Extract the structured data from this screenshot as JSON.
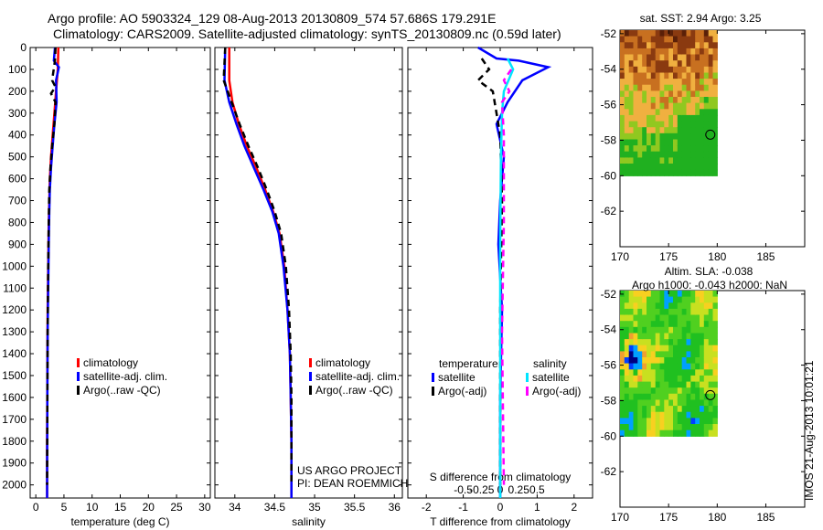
{
  "header": {
    "title_line1": "Argo profile: AO 5903324_129 08-Aug-2013 20130809_574 57.686S 179.291E",
    "title_line2": "Climatology: CARS2009. Satellite-adjusted climatology: synTS_20130809.nc (0.59d later)"
  },
  "stamp": "IMOS 21-Aug-2013 10:01:21",
  "credits": {
    "line1": "US ARGO PROJECT",
    "line2": "PI: DEAN ROEMMICH"
  },
  "colors": {
    "climatology": "#ff0000",
    "satellite": "#0000ff",
    "argo": "#000000",
    "sal_satellite": "#00e5ff",
    "sal_argo": "#ff00ff"
  },
  "chart_data": [
    {
      "type": "line",
      "panel": "temperature",
      "xlabel": "temperature (deg C)",
      "ylabel": "",
      "xlim": [
        -1,
        31
      ],
      "ylim": [
        2060,
        0
      ],
      "xticks": [
        0,
        5,
        10,
        15,
        20,
        25,
        30
      ],
      "xtick_labels": [
        "0",
        "5",
        "10",
        "15",
        "20",
        "25",
        "30"
      ],
      "yticks": [
        0,
        100,
        200,
        300,
        400,
        500,
        600,
        700,
        800,
        900,
        1000,
        1100,
        1200,
        1300,
        1400,
        1500,
        1600,
        1700,
        1800,
        1900,
        2000
      ],
      "ytick_labels": [
        "0",
        "100",
        "200",
        "300",
        "400",
        "500",
        "600",
        "700",
        "800",
        "900",
        "1000",
        "1100",
        "1200",
        "1300",
        "1400",
        "1500",
        "1600",
        "1700",
        "1800",
        "1900",
        "2000"
      ],
      "legend": [
        "climatology",
        "satellite-adj. clim.",
        "Argo(..raw -QC)"
      ],
      "series": [
        {
          "name": "climatology",
          "style": "solid",
          "x": [
            4.0,
            3.9,
            3.6,
            3.3,
            3.0,
            2.7,
            2.5,
            2.4,
            2.3,
            2.2,
            2.1,
            2.05,
            2.0,
            2.0
          ],
          "y": [
            0,
            100,
            200,
            300,
            400,
            500,
            600,
            700,
            800,
            1000,
            1200,
            1500,
            1800,
            2060
          ]
        },
        {
          "name": "satellite-adj. clim.",
          "style": "solid",
          "x": [
            3.4,
            3.2,
            4.1,
            3.6,
            3.7,
            3.3,
            3.0,
            2.7,
            2.5,
            2.4,
            2.3,
            2.2,
            2.1,
            2.05,
            2.0,
            2.0
          ],
          "y": [
            0,
            60,
            90,
            150,
            250,
            350,
            450,
            550,
            650,
            750,
            900,
            1100,
            1300,
            1600,
            1900,
            2060
          ]
        },
        {
          "name": "Argo(..raw -QC)",
          "style": "dashed",
          "x": [
            3.5,
            3.4,
            2.9,
            3.5,
            2.7,
            3.5,
            3.3,
            2.9,
            2.6,
            2.4,
            2.3,
            2.2,
            2.1,
            2.05,
            2.0
          ],
          "y": [
            0,
            60,
            150,
            180,
            210,
            250,
            350,
            450,
            550,
            650,
            800,
            1000,
            1300,
            1600,
            2000
          ]
        }
      ]
    },
    {
      "type": "line",
      "panel": "salinity",
      "xlabel": "salinity",
      "ylabel": "",
      "xlim": [
        33.75,
        36.1
      ],
      "ylim": [
        2060,
        0
      ],
      "xticks": [
        34,
        34.5,
        35,
        35.5,
        36
      ],
      "xtick_labels": [
        "34",
        "34.5",
        "35",
        "35.5",
        "36"
      ],
      "legend": [
        "climatology",
        "satellite-adj. clim.",
        "Argo(..raw -QC)"
      ],
      "series": [
        {
          "name": "climatology",
          "style": "solid",
          "x": [
            33.93,
            33.93,
            33.97,
            34.05,
            34.15,
            34.27,
            34.38,
            34.48,
            34.56,
            34.62,
            34.66,
            34.69,
            34.7,
            34.71,
            34.71
          ],
          "y": [
            0,
            150,
            250,
            350,
            450,
            550,
            650,
            750,
            850,
            1000,
            1200,
            1400,
            1600,
            1800,
            2060
          ]
        },
        {
          "name": "satellite-adj. clim.",
          "style": "solid",
          "x": [
            33.88,
            33.87,
            33.93,
            34.02,
            34.12,
            34.24,
            34.36,
            34.47,
            34.55,
            34.61,
            34.66,
            34.69,
            34.7,
            34.71,
            34.71
          ],
          "y": [
            0,
            150,
            250,
            350,
            450,
            550,
            650,
            750,
            850,
            1000,
            1200,
            1400,
            1600,
            1800,
            2060
          ]
        },
        {
          "name": "Argo(..raw -QC)",
          "style": "dashed",
          "x": [
            33.88,
            33.86,
            33.96,
            34.06,
            34.17,
            34.29,
            34.4,
            34.5,
            34.58,
            34.64,
            34.68,
            34.7,
            34.71,
            34.71
          ],
          "y": [
            0,
            150,
            250,
            350,
            450,
            550,
            650,
            750,
            850,
            1000,
            1200,
            1400,
            1600,
            2000
          ]
        }
      ]
    },
    {
      "type": "line",
      "panel": "difference",
      "xlabel": "T difference from climatology",
      "title": "S difference from climatology",
      "xlim": [
        -2.5,
        2.5
      ],
      "ylim": [
        2060,
        0
      ],
      "xticks": [
        -2,
        -1,
        0,
        1,
        2
      ],
      "xtick_labels": [
        "-2",
        "-1",
        "0",
        "1",
        "2"
      ],
      "top_ticks": [
        -1,
        -0.5,
        0,
        0.5,
        1
      ],
      "top_tick_labels": [
        "-0.5",
        "-0.25",
        "0",
        "0.25",
        "0.5"
      ],
      "legend_headers": [
        "temperature",
        "salinity"
      ],
      "legend": [
        "satellite",
        "Argo(-adj)",
        "satellite",
        "Argo(-adj)"
      ],
      "series": [
        {
          "name": "temperature satellite",
          "style": "solid",
          "x": [
            -0.6,
            -0.1,
            0.5,
            1.3,
            0.6,
            0.2,
            -0.1,
            0.1,
            0.0,
            -0.05,
            0.05,
            0.0,
            0.0
          ],
          "y": [
            0,
            50,
            60,
            90,
            150,
            250,
            350,
            500,
            700,
            900,
            1200,
            1600,
            2060
          ]
        },
        {
          "name": "temperature Argo(-adj)",
          "style": "dashed",
          "x": [
            -0.5,
            -0.3,
            -0.6,
            -0.2,
            0.0,
            0.05,
            0.0,
            0.0
          ],
          "y": [
            50,
            100,
            150,
            200,
            400,
            700,
            1200,
            2000
          ]
        },
        {
          "name": "salinity satellite",
          "style": "solid",
          "x": [
            0.2,
            0.35,
            0.1,
            0.05,
            0.02,
            0.0,
            0.0
          ],
          "y": [
            50,
            100,
            200,
            300,
            500,
            900,
            2060
          ]
        },
        {
          "name": "salinity Argo(-adj)",
          "style": "dashed",
          "x": [
            0.3,
            0.1,
            0.25,
            0.05,
            0.1,
            0.1,
            0.05,
            0.1
          ],
          "y": [
            100,
            150,
            200,
            250,
            400,
            800,
            1300,
            2000
          ]
        }
      ]
    },
    {
      "type": "heatmap",
      "panel": "sst",
      "title": "sat. SST: 2.94 Argo: 3.25",
      "xlim": [
        170,
        189
      ],
      "ylim": [
        -64,
        -51.8
      ],
      "xticks": [
        170,
        175,
        180,
        185
      ],
      "yticks": [
        -52,
        -54,
        -56,
        -58,
        -60,
        -62
      ],
      "marker": {
        "lon": 179.291,
        "lat": -57.686
      }
    },
    {
      "type": "heatmap",
      "panel": "sla",
      "title_line1": "Altim. SLA: -0.038",
      "title_line2": "Argo h1000: -0.043 h2000: NaN",
      "xlim": [
        170,
        189
      ],
      "ylim": [
        -64,
        -51.8
      ],
      "xticks": [
        170,
        175,
        180,
        185
      ],
      "yticks": [
        -52,
        -54,
        -56,
        -58,
        -60,
        -62
      ],
      "marker": {
        "lon": 179.291,
        "lat": -57.686
      }
    }
  ]
}
